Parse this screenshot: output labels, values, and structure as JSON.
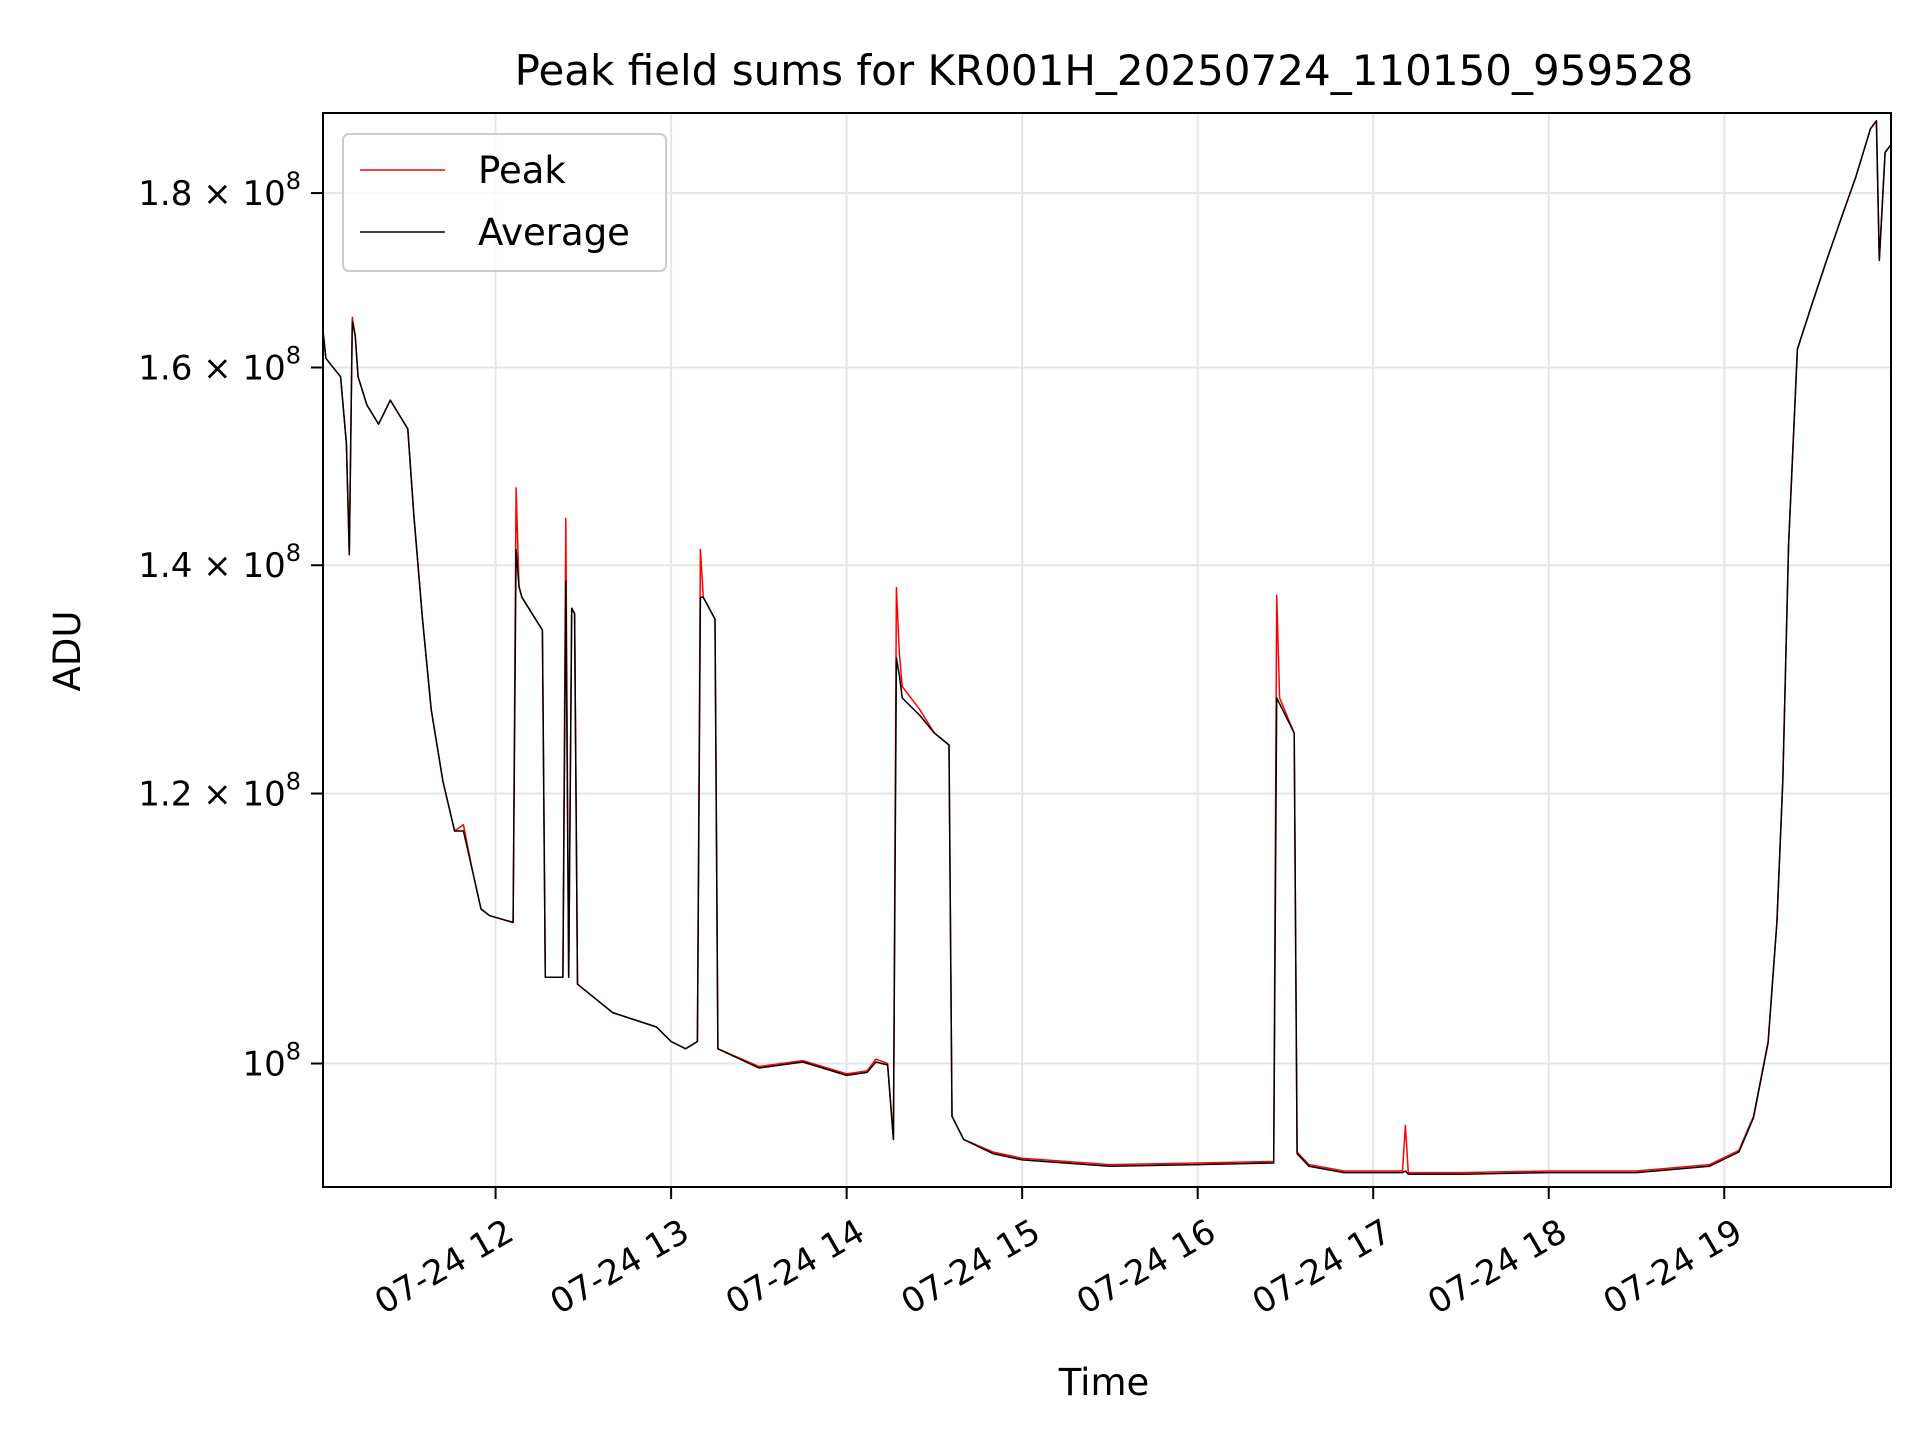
{
  "chart_data": {
    "type": "line",
    "title": "Peak field sums for KR001H_20250724_110150_959528",
    "xlabel": "Time",
    "ylabel": "ADU",
    "yscale": "log",
    "xlim": [
      "2025-07-24 11:01",
      "2025-07-24 19:57"
    ],
    "ylim": [
      92000000,
      190000000
    ],
    "grid": true,
    "legend_position": "upper left",
    "x_ticks": [
      "07-24 12",
      "07-24 13",
      "07-24 14",
      "07-24 15",
      "07-24 16",
      "07-24 17",
      "07-24 18",
      "07-24 19"
    ],
    "x_tick_values": [
      "2025-07-24 12:00",
      "2025-07-24 13:00",
      "2025-07-24 14:00",
      "2025-07-24 15:00",
      "2025-07-24 16:00",
      "2025-07-24 17:00",
      "2025-07-24 18:00",
      "2025-07-24 19:00"
    ],
    "y_ticks": [
      {
        "value": 100000000,
        "mantissa": "",
        "exponent": "8"
      },
      {
        "value": 120000000,
        "mantissa": "1.2",
        "exponent": "8"
      },
      {
        "value": 140000000,
        "mantissa": "1.4",
        "exponent": "8"
      },
      {
        "value": 160000000,
        "mantissa": "1.6",
        "exponent": "8"
      },
      {
        "value": 180000000,
        "mantissa": "1.8",
        "exponent": "8"
      }
    ],
    "series": [
      {
        "name": "Peak",
        "color": "#ff0000",
        "x": [
          "2025-07-24 11:01",
          "2025-07-24 11:02",
          "2025-07-24 11:07",
          "2025-07-24 11:09",
          "2025-07-24 11:10",
          "2025-07-24 11:11",
          "2025-07-24 11:12",
          "2025-07-24 11:13",
          "2025-07-24 11:16",
          "2025-07-24 11:20",
          "2025-07-24 11:24",
          "2025-07-24 11:26",
          "2025-07-24 11:30",
          "2025-07-24 11:32",
          "2025-07-24 11:35",
          "2025-07-24 11:38",
          "2025-07-24 11:42",
          "2025-07-24 11:46",
          "2025-07-24 11:49",
          "2025-07-24 11:52",
          "2025-07-24 11:55",
          "2025-07-24 11:58",
          "2025-07-24 12:06",
          "2025-07-24 12:07",
          "2025-07-24 12:08",
          "2025-07-24 12:09",
          "2025-07-24 12:16",
          "2025-07-24 12:17",
          "2025-07-24 12:23",
          "2025-07-24 12:24",
          "2025-07-24 12:25",
          "2025-07-24 12:26",
          "2025-07-24 12:27",
          "2025-07-24 12:28",
          "2025-07-24 12:40",
          "2025-07-24 12:55",
          "2025-07-24 13:00",
          "2025-07-24 13:05",
          "2025-07-24 13:09",
          "2025-07-24 13:10",
          "2025-07-24 13:11",
          "2025-07-24 13:15",
          "2025-07-24 13:16",
          "2025-07-24 13:30",
          "2025-07-24 13:45",
          "2025-07-24 14:00",
          "2025-07-24 14:07",
          "2025-07-24 14:10",
          "2025-07-24 14:14",
          "2025-07-24 14:16",
          "2025-07-24 14:17",
          "2025-07-24 14:18",
          "2025-07-24 14:19",
          "2025-07-24 14:25",
          "2025-07-24 14:30",
          "2025-07-24 14:35",
          "2025-07-24 14:36",
          "2025-07-24 14:40",
          "2025-07-24 14:50",
          "2025-07-24 15:00",
          "2025-07-24 15:30",
          "2025-07-24 16:00",
          "2025-07-24 16:26",
          "2025-07-24 16:27",
          "2025-07-24 16:28",
          "2025-07-24 16:33",
          "2025-07-24 16:34",
          "2025-07-24 16:38",
          "2025-07-24 16:50",
          "2025-07-24 17:10",
          "2025-07-24 17:11",
          "2025-07-24 17:12",
          "2025-07-24 17:30",
          "2025-07-24 18:00",
          "2025-07-24 18:30",
          "2025-07-24 18:55",
          "2025-07-24 19:05",
          "2025-07-24 19:10",
          "2025-07-24 19:15",
          "2025-07-24 19:18",
          "2025-07-24 19:20",
          "2025-07-24 19:22",
          "2025-07-24 19:25",
          "2025-07-24 19:30",
          "2025-07-24 19:35",
          "2025-07-24 19:40",
          "2025-07-24 19:45",
          "2025-07-24 19:50",
          "2025-07-24 19:52",
          "2025-07-24 19:53",
          "2025-07-24 19:55",
          "2025-07-24 19:57"
        ],
        "y": [
          164000000,
          161000000,
          159000000,
          152000000,
          141000000,
          165500000,
          163500000,
          159000000,
          156000000,
          154000000,
          156500000,
          155500000,
          153500000,
          145000000,
          135000000,
          127000000,
          121000000,
          117000000,
          117500000,
          114000000,
          111000000,
          110500000,
          110000000,
          147500000,
          138000000,
          137000000,
          134000000,
          106000000,
          106000000,
          144500000,
          106000000,
          136000000,
          135500000,
          105500000,
          103500000,
          102500000,
          101500000,
          101000000,
          101500000,
          141500000,
          137000000,
          135000000,
          101000000,
          99800000,
          100200000,
          99300000,
          99500000,
          100300000,
          100000000,
          95000000,
          137900000,
          132000000,
          129000000,
          127000000,
          125000000,
          124000000,
          96500000,
          95000000,
          94200000,
          93800000,
          93400000,
          93500000,
          93600000,
          137200000,
          128000000,
          125000000,
          94200000,
          93400000,
          93000000,
          93000000,
          95900000,
          92900000,
          92900000,
          93000000,
          93000000,
          93400000,
          94300000,
          96500000,
          101500000,
          110000000,
          121000000,
          142000000,
          162000000,
          167000000,
          172000000,
          177000000,
          182000000,
          188000000,
          189000000,
          172000000,
          185000000,
          186000000
        ]
      },
      {
        "name": "Average",
        "color": "#000000",
        "x": [
          "2025-07-24 11:01",
          "2025-07-24 11:02",
          "2025-07-24 11:07",
          "2025-07-24 11:09",
          "2025-07-24 11:10",
          "2025-07-24 11:11",
          "2025-07-24 11:12",
          "2025-07-24 11:13",
          "2025-07-24 11:16",
          "2025-07-24 11:20",
          "2025-07-24 11:24",
          "2025-07-24 11:26",
          "2025-07-24 11:30",
          "2025-07-24 11:32",
          "2025-07-24 11:35",
          "2025-07-24 11:38",
          "2025-07-24 11:42",
          "2025-07-24 11:46",
          "2025-07-24 11:49",
          "2025-07-24 11:52",
          "2025-07-24 11:55",
          "2025-07-24 11:58",
          "2025-07-24 12:06",
          "2025-07-24 12:07",
          "2025-07-24 12:08",
          "2025-07-24 12:09",
          "2025-07-24 12:16",
          "2025-07-24 12:17",
          "2025-07-24 12:23",
          "2025-07-24 12:24",
          "2025-07-24 12:25",
          "2025-07-24 12:26",
          "2025-07-24 12:27",
          "2025-07-24 12:28",
          "2025-07-24 12:40",
          "2025-07-24 12:55",
          "2025-07-24 13:00",
          "2025-07-24 13:05",
          "2025-07-24 13:09",
          "2025-07-24 13:10",
          "2025-07-24 13:11",
          "2025-07-24 13:15",
          "2025-07-24 13:16",
          "2025-07-24 13:30",
          "2025-07-24 13:45",
          "2025-07-24 14:00",
          "2025-07-24 14:07",
          "2025-07-24 14:10",
          "2025-07-24 14:14",
          "2025-07-24 14:16",
          "2025-07-24 14:17",
          "2025-07-24 14:18",
          "2025-07-24 14:19",
          "2025-07-24 14:25",
          "2025-07-24 14:30",
          "2025-07-24 14:35",
          "2025-07-24 14:36",
          "2025-07-24 14:40",
          "2025-07-24 14:50",
          "2025-07-24 15:00",
          "2025-07-24 15:30",
          "2025-07-24 16:00",
          "2025-07-24 16:26",
          "2025-07-24 16:27",
          "2025-07-24 16:28",
          "2025-07-24 16:33",
          "2025-07-24 16:34",
          "2025-07-24 16:38",
          "2025-07-24 16:50",
          "2025-07-24 17:10",
          "2025-07-24 17:11",
          "2025-07-24 17:12",
          "2025-07-24 17:30",
          "2025-07-24 18:00",
          "2025-07-24 18:30",
          "2025-07-24 18:55",
          "2025-07-24 19:05",
          "2025-07-24 19:10",
          "2025-07-24 19:15",
          "2025-07-24 19:18",
          "2025-07-24 19:20",
          "2025-07-24 19:22",
          "2025-07-24 19:25",
          "2025-07-24 19:30",
          "2025-07-24 19:35",
          "2025-07-24 19:40",
          "2025-07-24 19:45",
          "2025-07-24 19:50",
          "2025-07-24 19:52",
          "2025-07-24 19:53",
          "2025-07-24 19:55",
          "2025-07-24 19:57"
        ],
        "y": [
          164000000,
          161000000,
          159000000,
          152000000,
          141000000,
          165000000,
          163500000,
          159000000,
          156000000,
          154000000,
          156500000,
          155500000,
          153500000,
          145000000,
          135000000,
          127000000,
          121000000,
          117000000,
          117000000,
          114000000,
          111000000,
          110500000,
          110000000,
          141500000,
          138000000,
          137000000,
          134000000,
          106000000,
          106000000,
          138500000,
          106000000,
          136000000,
          135500000,
          105500000,
          103500000,
          102500000,
          101500000,
          101000000,
          101500000,
          137000000,
          137000000,
          135000000,
          101000000,
          99700000,
          100100000,
          99200000,
          99400000,
          100100000,
          99900000,
          95000000,
          131500000,
          130000000,
          128000000,
          126500000,
          125000000,
          124000000,
          96500000,
          95000000,
          94100000,
          93700000,
          93300000,
          93400000,
          93500000,
          128000000,
          127500000,
          125000000,
          94100000,
          93300000,
          92900000,
          92900000,
          93000000,
          92800000,
          92800000,
          92900000,
          92900000,
          93300000,
          94200000,
          96400000,
          101400000,
          110000000,
          121000000,
          142000000,
          162000000,
          167000000,
          172000000,
          177000000,
          182000000,
          188000000,
          189000000,
          172000000,
          185000000,
          186000000
        ]
      }
    ]
  }
}
